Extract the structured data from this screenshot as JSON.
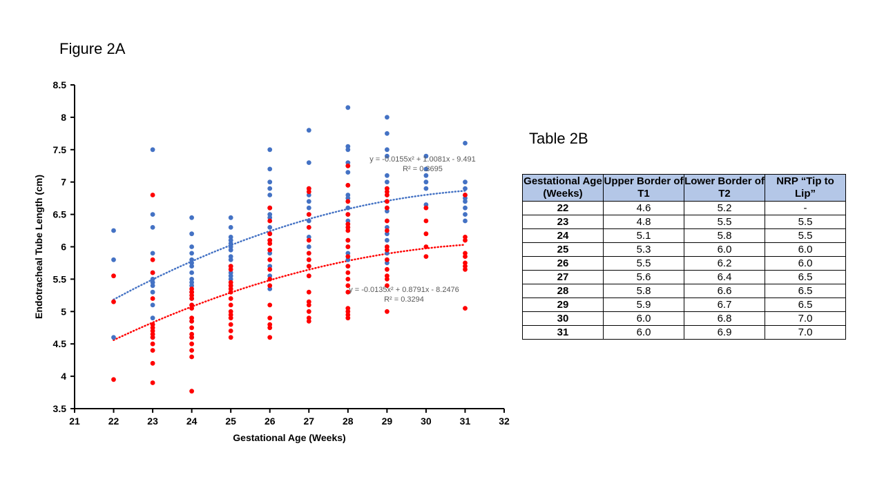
{
  "figure_title": "Figure 2A",
  "table_title": "Table 2B",
  "chart_data": {
    "type": "scatter",
    "title": "",
    "xlabel": "Gestational Age (Weeks)",
    "ylabel": "Endotracheal Tube Length (cm)",
    "xlim": [
      21,
      32
    ],
    "ylim": [
      3.5,
      8.5
    ],
    "x_ticks": [
      21,
      22,
      23,
      24,
      25,
      26,
      27,
      28,
      29,
      30,
      31,
      32
    ],
    "y_ticks": [
      3.5,
      4,
      4.5,
      5,
      5.5,
      6,
      6.5,
      7,
      7.5,
      8,
      8.5
    ],
    "y_tick_labels": [
      "3.5",
      "4",
      "4.5",
      "5",
      "5.5",
      "6",
      "6.5",
      "7",
      "7.5",
      "8",
      "8.5"
    ],
    "grid": false,
    "legend": "none",
    "series": [
      {
        "color": "#4472c4",
        "points": [
          [
            22,
            6.25
          ],
          [
            22,
            5.8
          ],
          [
            22,
            4.6
          ],
          [
            23,
            7.5
          ],
          [
            23,
            6.5
          ],
          [
            23,
            6.3
          ],
          [
            23,
            5.9
          ],
          [
            23,
            5.6
          ],
          [
            23,
            5.5
          ],
          [
            23,
            5.45
          ],
          [
            23,
            5.4
          ],
          [
            23,
            5.3
          ],
          [
            23,
            5.1
          ],
          [
            23,
            4.9
          ],
          [
            23,
            4.6
          ],
          [
            24,
            6.45
          ],
          [
            24,
            6.2
          ],
          [
            24,
            6.0
          ],
          [
            24,
            5.9
          ],
          [
            24,
            5.8
          ],
          [
            24,
            5.75
          ],
          [
            24,
            5.7
          ],
          [
            24,
            5.6
          ],
          [
            24,
            5.5
          ],
          [
            24,
            5.45
          ],
          [
            24,
            5.4
          ],
          [
            24,
            5.3
          ],
          [
            24,
            5.2
          ],
          [
            24,
            5.1
          ],
          [
            24,
            4.85
          ],
          [
            24,
            4.6
          ],
          [
            25,
            6.45
          ],
          [
            25,
            6.3
          ],
          [
            25,
            6.15
          ],
          [
            25,
            6.1
          ],
          [
            25,
            6.05
          ],
          [
            25,
            6.0
          ],
          [
            25,
            5.95
          ],
          [
            25,
            5.85
          ],
          [
            25,
            5.8
          ],
          [
            25,
            5.7
          ],
          [
            25,
            5.6
          ],
          [
            25,
            5.55
          ],
          [
            25,
            5.5
          ],
          [
            25,
            5.4
          ],
          [
            26,
            7.5
          ],
          [
            26,
            7.2
          ],
          [
            26,
            7.0
          ],
          [
            26,
            6.9
          ],
          [
            26,
            6.8
          ],
          [
            26,
            6.6
          ],
          [
            26,
            6.5
          ],
          [
            26,
            6.45
          ],
          [
            26,
            6.3
          ],
          [
            26,
            6.2
          ],
          [
            26,
            6.1
          ],
          [
            26,
            5.9
          ],
          [
            26,
            5.7
          ],
          [
            26,
            5.55
          ],
          [
            26,
            5.35
          ],
          [
            27,
            7.8
          ],
          [
            27,
            7.3
          ],
          [
            27,
            6.9
          ],
          [
            27,
            6.8
          ],
          [
            27,
            6.7
          ],
          [
            27,
            6.6
          ],
          [
            27,
            6.5
          ],
          [
            27,
            6.4
          ],
          [
            27,
            6.3
          ],
          [
            27,
            6.15
          ],
          [
            27,
            6.0
          ],
          [
            27,
            5.9
          ],
          [
            27,
            5.8
          ],
          [
            27,
            5.7
          ],
          [
            27,
            5.55
          ],
          [
            28,
            8.15
          ],
          [
            28,
            7.55
          ],
          [
            28,
            7.5
          ],
          [
            28,
            7.3
          ],
          [
            28,
            7.25
          ],
          [
            28,
            7.15
          ],
          [
            28,
            6.95
          ],
          [
            28,
            6.8
          ],
          [
            28,
            6.75
          ],
          [
            28,
            6.6
          ],
          [
            28,
            6.5
          ],
          [
            28,
            6.4
          ],
          [
            28,
            6.3
          ],
          [
            28,
            6.1
          ],
          [
            28,
            6.0
          ],
          [
            28,
            5.9
          ],
          [
            28,
            5.8
          ],
          [
            28,
            5.7
          ],
          [
            29,
            8.0
          ],
          [
            29,
            7.75
          ],
          [
            29,
            7.5
          ],
          [
            29,
            7.4
          ],
          [
            29,
            7.1
          ],
          [
            29,
            7.0
          ],
          [
            29,
            6.9
          ],
          [
            29,
            6.8
          ],
          [
            29,
            6.7
          ],
          [
            29,
            6.6
          ],
          [
            29,
            6.55
          ],
          [
            29,
            6.4
          ],
          [
            29,
            6.3
          ],
          [
            29,
            6.2
          ],
          [
            29,
            6.1
          ],
          [
            29,
            6.0
          ],
          [
            29,
            5.9
          ],
          [
            29,
            5.8
          ],
          [
            29,
            5.75
          ],
          [
            30,
            7.4
          ],
          [
            30,
            7.2
          ],
          [
            30,
            7.1
          ],
          [
            30,
            7.0
          ],
          [
            30,
            6.9
          ],
          [
            30,
            6.65
          ],
          [
            31,
            7.6
          ],
          [
            31,
            7.0
          ],
          [
            31,
            6.9
          ],
          [
            31,
            6.8
          ],
          [
            31,
            6.75
          ],
          [
            31,
            6.7
          ],
          [
            31,
            6.6
          ],
          [
            31,
            6.5
          ],
          [
            31,
            6.4
          ]
        ],
        "trendline": {
          "a": -0.0155,
          "b": 1.0081,
          "c": -9.491
        },
        "equation": "y = -0.0155x² + 1.0081x - 9.491",
        "r2": "R² = 0.3695"
      },
      {
        "color": "#ff0000",
        "points": [
          [
            22,
            5.55
          ],
          [
            22,
            5.15
          ],
          [
            22,
            3.95
          ],
          [
            23,
            6.8
          ],
          [
            23,
            5.8
          ],
          [
            23,
            5.6
          ],
          [
            23,
            5.2
          ],
          [
            23,
            4.8
          ],
          [
            23,
            4.75
          ],
          [
            23,
            4.7
          ],
          [
            23,
            4.65
          ],
          [
            23,
            4.6
          ],
          [
            23,
            4.5
          ],
          [
            23,
            4.4
          ],
          [
            23,
            4.2
          ],
          [
            23,
            3.9
          ],
          [
            24,
            5.35
          ],
          [
            24,
            5.3
          ],
          [
            24,
            5.25
          ],
          [
            24,
            5.2
          ],
          [
            24,
            5.1
          ],
          [
            24,
            5.05
          ],
          [
            24,
            4.9
          ],
          [
            24,
            4.85
          ],
          [
            24,
            4.75
          ],
          [
            24,
            4.65
          ],
          [
            24,
            4.6
          ],
          [
            24,
            4.5
          ],
          [
            24,
            4.4
          ],
          [
            24,
            4.3
          ],
          [
            24,
            3.77
          ],
          [
            25,
            5.7
          ],
          [
            25,
            5.65
          ],
          [
            25,
            5.45
          ],
          [
            25,
            5.4
          ],
          [
            25,
            5.35
          ],
          [
            25,
            5.3
          ],
          [
            25,
            5.2
          ],
          [
            25,
            5.1
          ],
          [
            25,
            5.0
          ],
          [
            25,
            4.95
          ],
          [
            25,
            4.9
          ],
          [
            25,
            4.8
          ],
          [
            25,
            4.7
          ],
          [
            25,
            4.6
          ],
          [
            26,
            6.6
          ],
          [
            26,
            6.4
          ],
          [
            26,
            6.2
          ],
          [
            26,
            6.1
          ],
          [
            26,
            6.05
          ],
          [
            26,
            5.95
          ],
          [
            26,
            5.8
          ],
          [
            26,
            5.65
          ],
          [
            26,
            5.5
          ],
          [
            26,
            5.4
          ],
          [
            26,
            5.1
          ],
          [
            26,
            4.9
          ],
          [
            26,
            4.8
          ],
          [
            26,
            4.75
          ],
          [
            26,
            4.6
          ],
          [
            27,
            6.9
          ],
          [
            27,
            6.85
          ],
          [
            27,
            6.5
          ],
          [
            27,
            6.3
          ],
          [
            27,
            6.1
          ],
          [
            27,
            5.9
          ],
          [
            27,
            5.8
          ],
          [
            27,
            5.7
          ],
          [
            27,
            5.55
          ],
          [
            27,
            5.3
          ],
          [
            27,
            5.15
          ],
          [
            27,
            5.1
          ],
          [
            27,
            5.0
          ],
          [
            27,
            4.9
          ],
          [
            27,
            4.85
          ],
          [
            28,
            7.25
          ],
          [
            28,
            6.95
          ],
          [
            28,
            6.7
          ],
          [
            28,
            6.5
          ],
          [
            28,
            6.35
          ],
          [
            28,
            6.3
          ],
          [
            28,
            6.25
          ],
          [
            28,
            6.1
          ],
          [
            28,
            6.0
          ],
          [
            28,
            5.85
          ],
          [
            28,
            5.7
          ],
          [
            28,
            5.6
          ],
          [
            28,
            5.5
          ],
          [
            28,
            5.4
          ],
          [
            28,
            5.3
          ],
          [
            28,
            5.05
          ],
          [
            28,
            5.0
          ],
          [
            28,
            4.95
          ],
          [
            28,
            4.9
          ],
          [
            29,
            6.9
          ],
          [
            29,
            6.85
          ],
          [
            29,
            6.8
          ],
          [
            29,
            6.7
          ],
          [
            29,
            6.6
          ],
          [
            29,
            6.4
          ],
          [
            29,
            6.25
          ],
          [
            29,
            6.0
          ],
          [
            29,
            5.95
          ],
          [
            29,
            5.8
          ],
          [
            29,
            5.65
          ],
          [
            29,
            5.55
          ],
          [
            29,
            5.5
          ],
          [
            29,
            5.4
          ],
          [
            29,
            5.0
          ],
          [
            30,
            6.6
          ],
          [
            30,
            6.4
          ],
          [
            30,
            6.2
          ],
          [
            30,
            6.0
          ],
          [
            30,
            5.85
          ],
          [
            31,
            6.8
          ],
          [
            31,
            6.15
          ],
          [
            31,
            6.1
          ],
          [
            31,
            5.9
          ],
          [
            31,
            5.85
          ],
          [
            31,
            5.75
          ],
          [
            31,
            5.7
          ],
          [
            31,
            5.65
          ],
          [
            31,
            5.05
          ]
        ],
        "trendline": {
          "a": -0.0135,
          "b": 0.8791,
          "c": -8.2476
        },
        "equation": "y = -0.0135x² + 0.8791x - 8.2476",
        "r2": "R² = 0.3294"
      }
    ]
  },
  "table": {
    "headers": [
      "Gestational Age (Weeks)",
      "Upper Border of T1",
      "Lower Border of T2",
      "NRP “Tip to Lip”"
    ],
    "rows": [
      [
        "22",
        "4.6",
        "5.2",
        "-"
      ],
      [
        "23",
        "4.8",
        "5.5",
        "5.5"
      ],
      [
        "24",
        "5.1",
        "5.8",
        "5.5"
      ],
      [
        "25",
        "5.3",
        "6.0",
        "6.0"
      ],
      [
        "26",
        "5.5",
        "6.2",
        "6.0"
      ],
      [
        "27",
        "5.6",
        "6.4",
        "6.5"
      ],
      [
        "28",
        "5.8",
        "6.6",
        "6.5"
      ],
      [
        "29",
        "5.9",
        "6.7",
        "6.5"
      ],
      [
        "30",
        "6.0",
        "6.8",
        "7.0"
      ],
      [
        "31",
        "6.0",
        "6.9",
        "7.0"
      ]
    ]
  }
}
